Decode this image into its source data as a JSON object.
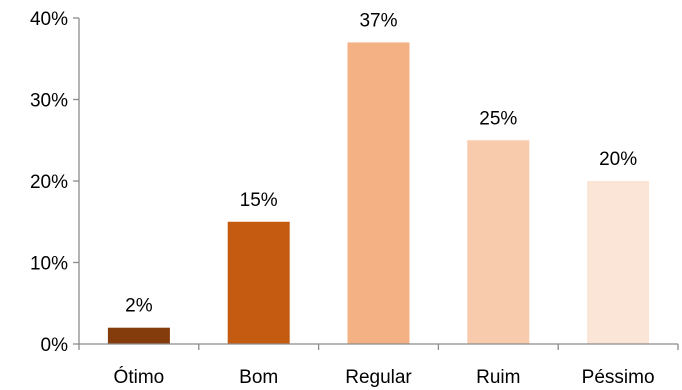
{
  "chart_data": {
    "type": "bar",
    "categories": [
      "Ótimo",
      "Bom",
      "Regular",
      "Ruim",
      "Péssimo"
    ],
    "values": [
      2,
      15,
      37,
      25,
      20
    ],
    "value_labels": [
      "2%",
      "15%",
      "37%",
      "25%",
      "20%"
    ],
    "bar_colors": [
      "#843c0c",
      "#c55a11",
      "#f4b183",
      "#f8cbad",
      "#fbe5d6"
    ],
    "ylim": [
      0,
      40
    ],
    "y_ticks": [
      0,
      10,
      20,
      30,
      40
    ],
    "y_tick_labels": [
      "0%",
      "10%",
      "20%",
      "30%",
      "40%"
    ],
    "title": "",
    "xlabel": "",
    "ylabel": "",
    "grid": false,
    "legend": "none"
  }
}
